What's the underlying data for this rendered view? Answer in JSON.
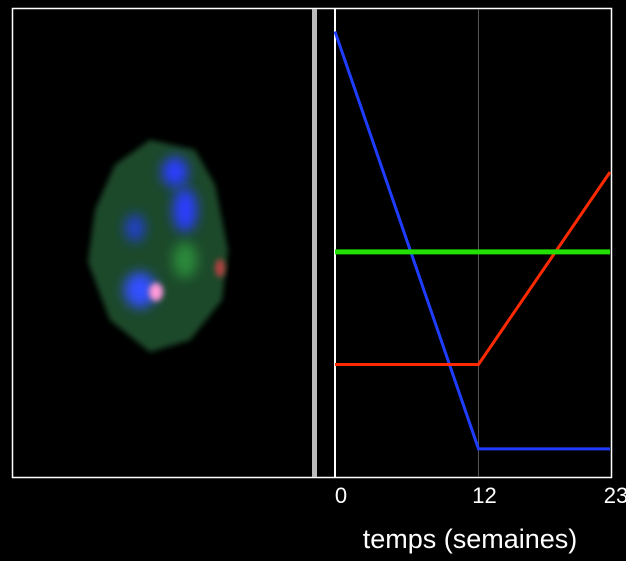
{
  "chart_data": {
    "type": "line",
    "x": [
      0,
      12,
      23
    ],
    "xlim": [
      0,
      23
    ],
    "xticks": [
      0,
      12,
      23
    ],
    "ylim": [
      0,
      100
    ],
    "xlabel": "temps (semaines)",
    "series": [
      {
        "color": "#1f3dff",
        "values": [
          95,
          6,
          6
        ]
      },
      {
        "color": "#ff2a00",
        "values": [
          24,
          24,
          65
        ]
      },
      {
        "color": "#22e000",
        "values": [
          48,
          48,
          48
        ]
      }
    ]
  }
}
